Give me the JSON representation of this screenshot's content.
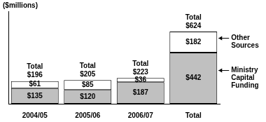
{
  "chart_data": {
    "type": "bar",
    "title": "($millions)",
    "categories": [
      "2004/05",
      "2005/06",
      "2006/07",
      "Total"
    ],
    "series": [
      {
        "name": "Ministry Capital Funding",
        "color": "#c0c0c0",
        "values": [
          135,
          120,
          187,
          442
        ],
        "value_labels": [
          "$135",
          "$120",
          "$187",
          "$442"
        ]
      },
      {
        "name": "Other Sources",
        "color": "#ffffff",
        "values": [
          61,
          85,
          36,
          182
        ],
        "value_labels": [
          "$61",
          "$85",
          "$36",
          "$182"
        ]
      }
    ],
    "totals": {
      "label": "Total",
      "values": [
        196,
        205,
        223,
        624
      ],
      "value_labels": [
        "$196",
        "$205",
        "$223",
        "$624"
      ]
    },
    "stacked": true,
    "data_labels": true,
    "legend": "right",
    "grid": false,
    "tick_labels": "x",
    "ylim": [
      0,
      800
    ]
  }
}
